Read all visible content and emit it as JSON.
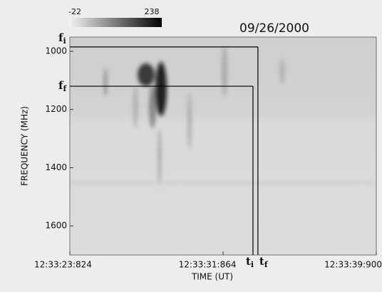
{
  "chart_data": {
    "type": "spectrogram",
    "date": "09/26/2000",
    "xlabel": "TIME (UT)",
    "ylabel": "FREQUENCY (MHz)",
    "xlim": [
      23.824,
      39.9
    ],
    "xticks": [
      {
        "value": 23.824,
        "label": "12:33:23:824"
      },
      {
        "value": 31.864,
        "label": "12:33:31:864"
      },
      {
        "value": 39.9,
        "label": "12:33:39:900"
      }
    ],
    "ylim": [
      951,
      1700
    ],
    "y_inverted": true,
    "yticks": [
      1000,
      1200,
      1400,
      1600
    ],
    "colorbar": {
      "range": [
        -22,
        238
      ],
      "ticks": [
        -22,
        238
      ],
      "colors": [
        "#f4f4f4",
        "#000000"
      ]
    },
    "y_markers": [
      {
        "label": "f",
        "sub": "i",
        "value": 985
      },
      {
        "label": "f",
        "sub": "f",
        "value": 1120
      }
    ],
    "x_markers": [
      {
        "label": "t",
        "sub": "i",
        "value": 33.43
      },
      {
        "label": "t",
        "sub": "f",
        "value": 33.69
      }
    ]
  }
}
